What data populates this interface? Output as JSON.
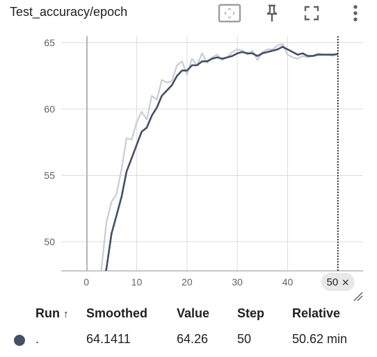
{
  "card": {
    "title": "Test_accuracy/epoch",
    "icons": [
      "fit-domain-icon",
      "pin-icon",
      "fullscreen-icon",
      "more-vert-icon"
    ]
  },
  "chart_data": {
    "type": "line",
    "title": "",
    "xlabel": "",
    "ylabel": "",
    "xlim": [
      -5,
      55
    ],
    "ylim": [
      47.8,
      65.5
    ],
    "x_ticks": [
      "0",
      "10",
      "20",
      "30",
      "40",
      "50"
    ],
    "y_ticks": [
      "50",
      "55",
      "60",
      "65"
    ],
    "grid": true,
    "cursor": {
      "x": 50,
      "label": "50"
    },
    "series": [
      {
        "role": "raw",
        "color": "#c8ccd6",
        "x": [
          2,
          3,
          4,
          5,
          6,
          7,
          8,
          9,
          10,
          11,
          12,
          13,
          14,
          15,
          16,
          17,
          18,
          19,
          20,
          21,
          22,
          23,
          24,
          25,
          26,
          27,
          28,
          29,
          30,
          31,
          32,
          33,
          34,
          35,
          36,
          37,
          38,
          39,
          40,
          41,
          42,
          43,
          44,
          45,
          46,
          47,
          48,
          49,
          50
        ],
        "y": [
          44.5,
          48.0,
          51.5,
          53.0,
          53.6,
          55.5,
          57.8,
          57.7,
          59.0,
          59.8,
          59.2,
          61.0,
          60.7,
          62.2,
          62.0,
          62.1,
          63.3,
          63.6,
          62.6,
          63.8,
          63.3,
          64.2,
          63.5,
          63.9,
          64.1,
          63.7,
          63.9,
          64.3,
          64.5,
          64.4,
          64.1,
          64.4,
          63.7,
          64.3,
          64.5,
          64.5,
          64.8,
          64.9,
          64.1,
          63.9,
          63.8,
          64.0,
          63.9,
          64.0,
          64.2,
          64.1,
          64.1,
          64.0,
          64.26
        ]
      },
      {
        "role": "smoothed",
        "color": "#425066",
        "x": [
          3,
          4,
          5,
          6,
          7,
          8,
          9,
          10,
          11,
          12,
          13,
          14,
          15,
          16,
          17,
          18,
          19,
          20,
          21,
          22,
          23,
          24,
          25,
          26,
          27,
          28,
          29,
          30,
          31,
          32,
          33,
          34,
          35,
          36,
          37,
          38,
          39,
          40,
          41,
          42,
          43,
          44,
          45,
          46,
          47,
          48,
          49,
          50
        ],
        "y": [
          46.2,
          48.0,
          50.6,
          52.0,
          53.4,
          55.3,
          56.3,
          57.3,
          58.3,
          58.6,
          59.5,
          60.1,
          61.0,
          61.4,
          61.8,
          62.5,
          62.9,
          62.9,
          63.3,
          63.3,
          63.6,
          63.6,
          63.8,
          63.9,
          63.8,
          63.9,
          64.0,
          64.2,
          64.3,
          64.2,
          64.2,
          64.0,
          64.2,
          64.3,
          64.4,
          64.5,
          64.7,
          64.5,
          64.3,
          64.1,
          64.2,
          64.0,
          64.0,
          64.1,
          64.1,
          64.1,
          64.1,
          64.14
        ]
      }
    ]
  },
  "table": {
    "headers": {
      "run": "Run",
      "sort": "↑",
      "smoothed": "Smoothed",
      "value": "Value",
      "step": "Step",
      "relative": "Relative"
    },
    "rows": [
      {
        "dot_color": "#425066",
        "run": ".",
        "smoothed": "64.1411",
        "value": "64.26",
        "step": "50",
        "relative": "50.62 min"
      }
    ]
  }
}
